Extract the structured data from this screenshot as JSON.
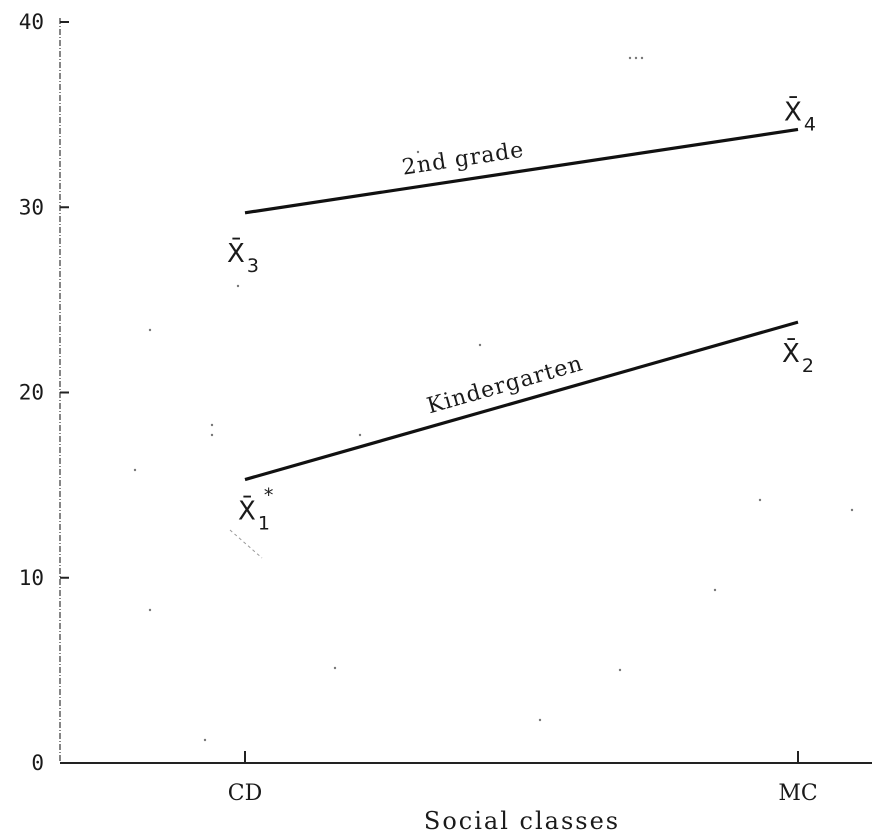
{
  "chart_data": {
    "type": "line",
    "xlabel": "Social classes",
    "ylabel": "",
    "categories": [
      "CD",
      "MC"
    ],
    "ylim": [
      0,
      40
    ],
    "yticks": [
      0,
      10,
      20,
      30,
      40
    ],
    "ytick_labels": [
      "0",
      "10",
      "20",
      "30",
      "40"
    ],
    "grid": false,
    "series": [
      {
        "name": "Kindergarten",
        "values": [
          15.3,
          23.8
        ],
        "point_labels": [
          {
            "main": "X̄",
            "sub": "1",
            "sup": "*"
          },
          {
            "main": "X̄",
            "sub": "2",
            "sup": ""
          }
        ]
      },
      {
        "name": "2nd grade",
        "values": [
          29.7,
          34.2
        ],
        "point_labels": [
          {
            "main": "X̄",
            "sub": "3",
            "sup": ""
          },
          {
            "main": "X̄",
            "sub": "4",
            "sup": ""
          }
        ]
      }
    ]
  }
}
